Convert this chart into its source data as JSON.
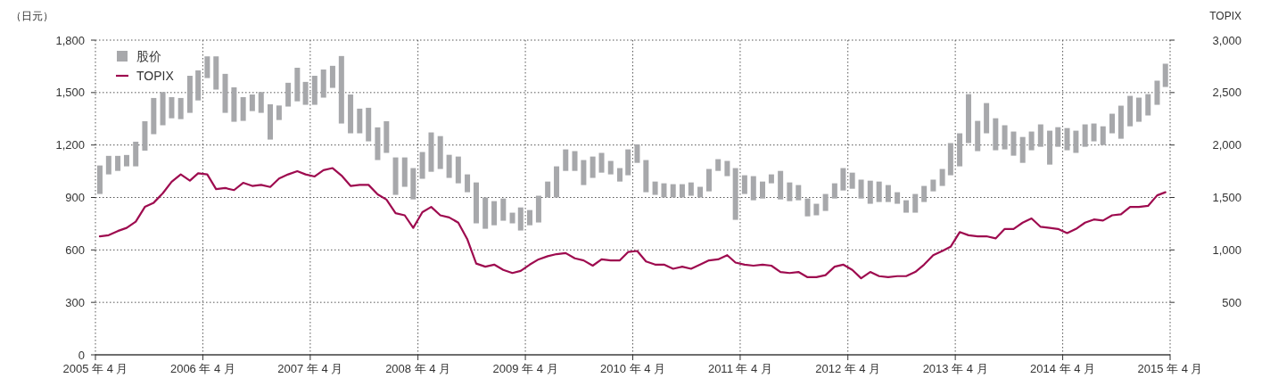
{
  "chart_data": {
    "type": "bar",
    "ylabel": "（日元）",
    "y2label": "TOPIX",
    "legend": "top left",
    "grid": true,
    "x": [
      "2005-04-16",
      "2005-05-16",
      "2005-06-16",
      "2005-07-16",
      "2005-08-16",
      "2005-09-16",
      "2005-10-16",
      "2005-11-16",
      "2005-12-16",
      "2006-01-16",
      "2006-02-16",
      "2006-03-16",
      "2006-04-16",
      "2006-05-16",
      "2006-06-16",
      "2006-07-16",
      "2006-08-16",
      "2006-09-16",
      "2006-10-16",
      "2006-11-16",
      "2006-12-16",
      "2007-01-16",
      "2007-02-16",
      "2007-03-16",
      "2007-04-16",
      "2007-05-16",
      "2007-06-16",
      "2007-07-16",
      "2007-08-16",
      "2007-09-16",
      "2007-10-16",
      "2007-11-16",
      "2007-12-16",
      "2008-01-16",
      "2008-02-16",
      "2008-03-16",
      "2008-04-16",
      "2008-05-16",
      "2008-06-16",
      "2008-07-16",
      "2008-08-16",
      "2008-09-16",
      "2008-10-16",
      "2008-11-16",
      "2008-12-16",
      "2009-01-16",
      "2009-02-16",
      "2009-03-16",
      "2009-04-16",
      "2009-05-16",
      "2009-06-16",
      "2009-07-16",
      "2009-08-16",
      "2009-09-16",
      "2009-10-16",
      "2009-11-16",
      "2009-12-16",
      "2010-01-16",
      "2010-02-16",
      "2010-03-16",
      "2010-04-16",
      "2010-05-16",
      "2010-06-16",
      "2010-07-16",
      "2010-08-16",
      "2010-09-16",
      "2010-10-16",
      "2010-11-16",
      "2010-12-16",
      "2011-01-16",
      "2011-02-16",
      "2011-03-16",
      "2011-04-16",
      "2011-05-16",
      "2011-06-16",
      "2011-07-16",
      "2011-08-16",
      "2011-09-16",
      "2011-10-16",
      "2011-11-16",
      "2011-12-16",
      "2012-01-16",
      "2012-02-16",
      "2012-03-16",
      "2012-04-16",
      "2012-05-16",
      "2012-06-16",
      "2012-07-16",
      "2012-08-16",
      "2012-09-16",
      "2012-10-16",
      "2012-11-16",
      "2012-12-16",
      "2013-01-16",
      "2013-02-16",
      "2013-03-16",
      "2013-04-16",
      "2013-05-16",
      "2013-06-16",
      "2013-07-16",
      "2013-08-16",
      "2013-09-16",
      "2013-10-16",
      "2013-11-16",
      "2013-12-16",
      "2014-01-16",
      "2014-02-16",
      "2014-03-16",
      "2014-04-16",
      "2014-05-16",
      "2014-06-16",
      "2014-07-16",
      "2014-08-16",
      "2014-09-16",
      "2014-10-16",
      "2014-11-16",
      "2014-12-16",
      "2015-01-16",
      "2015-02-16",
      "2015-03-16"
    ],
    "xlim": [
      "2005-04",
      "2015-04"
    ],
    "xticks": [
      {
        "value": "2005-04",
        "label": "2005 年 4 月"
      },
      {
        "value": "2006-04",
        "label": "2006 年 4 月"
      },
      {
        "value": "2007-04",
        "label": "2007 年 4 月"
      },
      {
        "value": "2008-04",
        "label": "2008 年 4 月"
      },
      {
        "value": "2009-04",
        "label": "2009 年 4 月"
      },
      {
        "value": "2010-04",
        "label": "2010 年 4 月"
      },
      {
        "value": "2011-04",
        "label": "2011 年 4 月"
      },
      {
        "value": "2012-04",
        "label": "2012 年 4 月"
      },
      {
        "value": "2013-04",
        "label": "2013 年 4 月"
      },
      {
        "value": "2014-04",
        "label": "2014 年 4 月"
      },
      {
        "value": "2015-04",
        "label": "2015 年 4 月"
      }
    ],
    "ylim": [
      0,
      1800
    ],
    "yticks": [
      0,
      300,
      600,
      900,
      {
        "value": 1200,
        "label": "1,200"
      },
      {
        "value": 1500,
        "label": "1,500"
      },
      {
        "value": 1800,
        "label": "1,800"
      }
    ],
    "y2lim": [
      0,
      3000
    ],
    "y2ticks": [
      500,
      {
        "value": 1000,
        "label": "1,000"
      },
      {
        "value": 1500,
        "label": "1,500"
      },
      {
        "value": 2000,
        "label": "2,000"
      },
      {
        "value": 2500,
        "label": "2,500"
      },
      {
        "value": 3000,
        "label": "3,000"
      }
    ],
    "series": [
      {
        "name": "股价",
        "color": "#a7a8ab",
        "base": [
          920,
          1032,
          1052,
          1078,
          1078,
          1168,
          1262,
          1313,
          1353,
          1348,
          1384,
          1455,
          1583,
          1517,
          1384,
          1333,
          1338,
          1394,
          1384,
          1231,
          1343,
          1420,
          1450,
          1430,
          1430,
          1471,
          1527,
          1323,
          1267,
          1267,
          1221,
          1114,
          1155,
          915,
          961,
          889,
          1007,
          1047,
          1063,
          1012,
          981,
          930,
          752,
          721,
          741,
          767,
          752,
          711,
          741,
          757,
          900,
          900,
          1052,
          1052,
          971,
          1012,
          1042,
          1032,
          991,
          1027,
          1098,
          930,
          915,
          900,
          900,
          900,
          910,
          900,
          935,
          1052,
          1022,
          772,
          920,
          884,
          894,
          981,
          889,
          879,
          884,
          792,
          798,
          823,
          894,
          940,
          950,
          894,
          864,
          874,
          874,
          864,
          813,
          813,
          874,
          935,
          966,
          1027,
          1078,
          1211,
          1165,
          1267,
          1170,
          1175,
          1139,
          1098,
          1170,
          1190,
          1088,
          1190,
          1170,
          1155,
          1190,
          1221,
          1200,
          1267,
          1236,
          1307,
          1333,
          1369,
          1430,
          1532
        ],
        "values": [
          163,
          106,
          86,
          65,
          141,
          168,
          207,
          190,
          121,
          121,
          212,
          172,
          124,
          190,
          223,
          197,
          136,
          95,
          119,
          202,
          83,
          136,
          192,
          131,
          166,
          161,
          126,
          386,
          222,
          141,
          192,
          187,
          181,
          214,
          168,
          179,
          153,
          225,
          188,
          132,
          153,
          102,
          234,
          179,
          138,
          127,
          61,
          132,
          87,
          153,
          91,
          178,
          123,
          113,
          143,
          122,
          113,
          77,
          77,
          148,
          106,
          184,
          76,
          81,
          76,
          76,
          76,
          61,
          128,
          67,
          87,
          296,
          107,
          138,
          97,
          51,
          163,
          107,
          87,
          102,
          66,
          97,
          87,
          128,
          92,
          108,
          132,
          117,
          97,
          66,
          71,
          107,
          92,
          67,
          97,
          184,
          189,
          280,
          173,
          173,
          183,
          138,
          138,
          148,
          107,
          128,
          194,
          112,
          127,
          127,
          128,
          102,
          107,
          112,
          189,
          174,
          138,
          122,
          138,
          133
        ]
      },
      {
        "name": "TOPIX",
        "type": "line",
        "axis": "y2",
        "color": "#9e0b4f",
        "values": [
          1130,
          1140,
          1180,
          1210,
          1270,
          1410,
          1450,
          1540,
          1650,
          1720,
          1660,
          1730,
          1720,
          1580,
          1590,
          1570,
          1640,
          1610,
          1620,
          1600,
          1680,
          1720,
          1750,
          1720,
          1700,
          1760,
          1780,
          1710,
          1610,
          1620,
          1620,
          1530,
          1480,
          1350,
          1330,
          1210,
          1360,
          1410,
          1330,
          1310,
          1260,
          1100,
          870,
          840,
          860,
          810,
          780,
          800,
          860,
          910,
          940,
          960,
          970,
          920,
          900,
          850,
          910,
          900,
          900,
          980,
          990,
          890,
          860,
          860,
          820,
          840,
          820,
          860,
          900,
          910,
          950,
          880,
          860,
          850,
          860,
          850,
          790,
          780,
          790,
          740,
          740,
          760,
          840,
          860,
          810,
          730,
          790,
          750,
          740,
          750,
          750,
          790,
          860,
          950,
          990,
          1030,
          1170,
          1140,
          1130,
          1130,
          1110,
          1200,
          1200,
          1260,
          1300,
          1220,
          1210,
          1200,
          1160,
          1200,
          1260,
          1290,
          1280,
          1330,
          1340,
          1410,
          1410,
          1420,
          1520,
          1550
        ]
      }
    ]
  }
}
